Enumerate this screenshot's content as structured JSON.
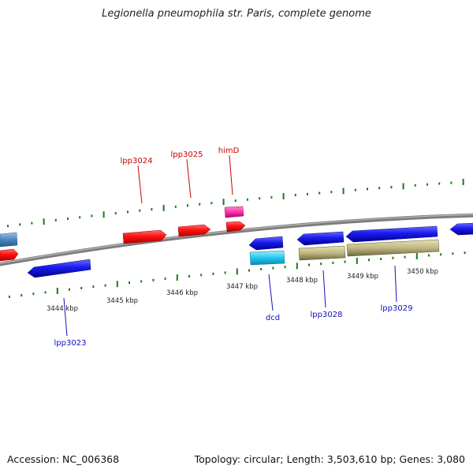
{
  "title": "Legionella pneumophila str. Paris, complete genome",
  "footer": {
    "accession": "Accession: NC_006368",
    "topology": "Topology: circular; Length: 3,503,610 bp; Genes: 3,080"
  },
  "colors": {
    "backbone": "#8c8c8c",
    "tick": "#1a7a1a",
    "forward_gene": "#ff1111",
    "reverse_gene": "#1a1aee",
    "rna_pink": "#ff33aa",
    "steel_blue": "#4a85c0",
    "cyan": "#22c8f0",
    "khaki": "#c0b880",
    "forward_label": "#cc0000",
    "reverse_label": "#1010bb",
    "scale_label": "#222222"
  },
  "scale_labels": [
    {
      "text": "3444 kbp",
      "kbp": 3444
    },
    {
      "text": "3445 kbp",
      "kbp": 3445
    },
    {
      "text": "3446 kbp",
      "kbp": 3446
    },
    {
      "text": "3447 kbp",
      "kbp": 3447
    },
    {
      "text": "3448 kbp",
      "kbp": 3448
    },
    {
      "text": "3449 kbp",
      "kbp": 3449
    },
    {
      "text": "3450 kbp",
      "kbp": 3450
    }
  ],
  "gene_labels": [
    {
      "text": "lpp3024",
      "strand": "forward"
    },
    {
      "text": "lpp3025",
      "strand": "forward"
    },
    {
      "text": "himD",
      "strand": "forward"
    },
    {
      "text": "lpp3023",
      "strand": "reverse"
    },
    {
      "text": "dcd",
      "strand": "reverse"
    },
    {
      "text": "lpp3028",
      "strand": "reverse"
    },
    {
      "text": "lpp3029",
      "strand": "reverse"
    }
  ]
}
